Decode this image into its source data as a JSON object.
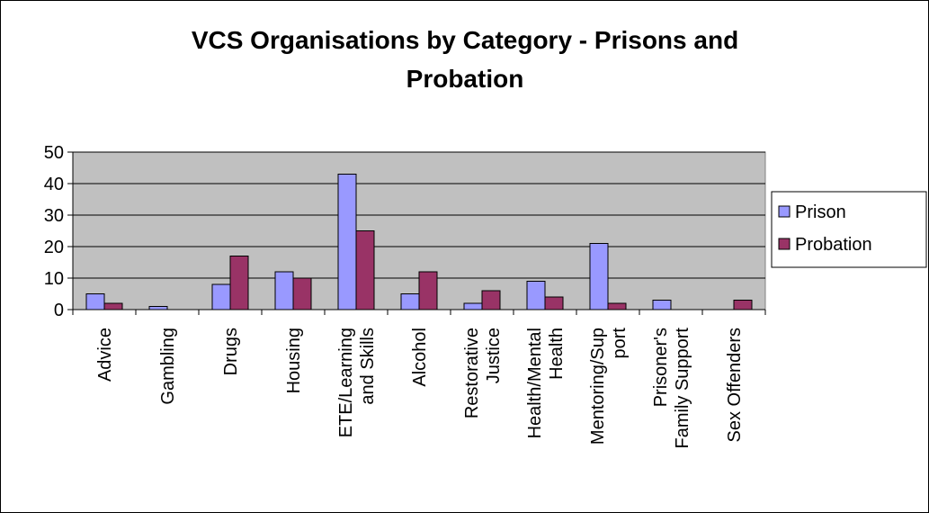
{
  "chart_data": {
    "type": "bar",
    "title_lines": [
      "VCS Organisations by Category - Prisons and",
      "Probation"
    ],
    "categories": [
      [
        "Advice"
      ],
      [
        "Gambling"
      ],
      [
        "Drugs"
      ],
      [
        "Housing"
      ],
      [
        "ETE/Learning",
        "and Skills"
      ],
      [
        "Alcohol"
      ],
      [
        "Restorative",
        "Justice"
      ],
      [
        "Health/Mental",
        "Health"
      ],
      [
        "Mentoring/Sup",
        "port"
      ],
      [
        "Prisoner's",
        "Family Support"
      ],
      [
        "Sex Offenders"
      ]
    ],
    "series": [
      {
        "name": "Prison",
        "color": "#9999ff",
        "values": [
          5,
          1,
          8,
          12,
          43,
          5,
          2,
          9,
          21,
          3,
          0
        ]
      },
      {
        "name": "Probation",
        "color": "#993366",
        "values": [
          2,
          0,
          17,
          10,
          25,
          12,
          6,
          4,
          2,
          0,
          3
        ]
      }
    ],
    "yticks": [
      "0",
      "10",
      "20",
      "30",
      "40",
      "50"
    ],
    "ylim": [
      0,
      50
    ],
    "grid": true,
    "plot_background": "#c0c0c0",
    "legend_position": "right"
  }
}
